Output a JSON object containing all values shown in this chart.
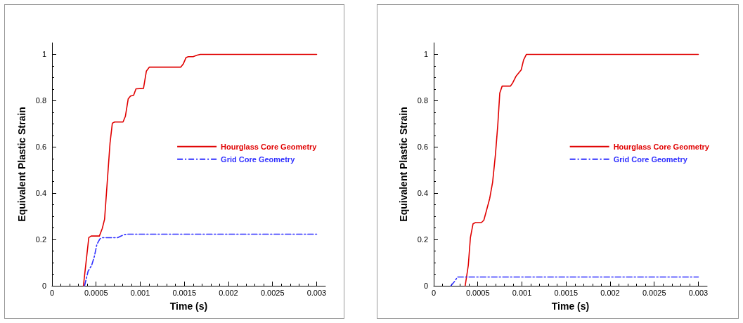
{
  "chart_data": [
    {
      "type": "line",
      "xlabel": "Time (s)",
      "ylabel": "Equivalent Plastic Strain",
      "xlim": [
        0,
        0.0031
      ],
      "ylim": [
        0,
        1.05
      ],
      "xticks": [
        0,
        0.0005,
        0.001,
        0.0015,
        0.002,
        0.0025,
        0.003
      ],
      "yticks": [
        0,
        0.2,
        0.4,
        0.6,
        0.8,
        1
      ],
      "grid": false,
      "legend": "right",
      "marker": "none",
      "series": [
        {
          "name": "Hourglass Core Geometry",
          "color": "#e00000",
          "line_style": "solid",
          "x": [
            0.000356,
            0.000417,
            0.000444,
            0.000537,
            0.00057,
            0.000596,
            0.000658,
            0.000684,
            0.00071,
            0.000805,
            0.000832,
            0.000864,
            0.00089,
            0.000925,
            0.000952,
            0.001037,
            0.00107,
            0.001104,
            0.00146,
            0.001487,
            0.001519,
            0.001545,
            0.0016,
            0.00164,
            0.00168,
            0.003
          ],
          "values": [
            0,
            0.208,
            0.215,
            0.215,
            0.248,
            0.288,
            0.618,
            0.703,
            0.708,
            0.708,
            0.733,
            0.808,
            0.82,
            0.823,
            0.851,
            0.853,
            0.928,
            0.945,
            0.945,
            0.958,
            0.986,
            0.99,
            0.99,
            0.996,
            1,
            1
          ]
        },
        {
          "name": "Grid Core Geometry",
          "color": "#3030ff",
          "line_style": "dashed",
          "x": [
            0.000369,
            0.000409,
            0.000449,
            0.000481,
            0.000508,
            0.000543,
            0.00057,
            0.000743,
            0.00081,
            0.00085,
            0.003
          ],
          "values": [
            0,
            0.063,
            0.088,
            0.128,
            0.178,
            0.203,
            0.208,
            0.208,
            0.22,
            0.223,
            0.223
          ]
        }
      ]
    },
    {
      "type": "line",
      "xlabel": "Time (s)",
      "ylabel": "Equivalent Plastic Strain",
      "xlim": [
        0,
        0.0031
      ],
      "ylim": [
        0,
        1.05
      ],
      "xticks": [
        0,
        0.0005,
        0.001,
        0.0015,
        0.002,
        0.0025,
        0.003
      ],
      "yticks": [
        0,
        0.2,
        0.4,
        0.6,
        0.8,
        1
      ],
      "grid": false,
      "legend": "right",
      "marker": "none",
      "series": [
        {
          "name": "Hourglass Core Geometry",
          "color": "#e00000",
          "line_style": "solid",
          "x": [
            0.000357,
            0.000392,
            0.000416,
            0.000446,
            0.000473,
            0.00054,
            0.000568,
            0.0006,
            0.000635,
            0.000668,
            0.0007,
            0.000727,
            0.000749,
            0.000776,
            0.00087,
            0.000897,
            0.000932,
            0.000992,
            0.001019,
            0.001051,
            0.003
          ],
          "values": [
            0,
            0.088,
            0.208,
            0.268,
            0.273,
            0.273,
            0.283,
            0.328,
            0.378,
            0.448,
            0.568,
            0.698,
            0.833,
            0.863,
            0.863,
            0.878,
            0.905,
            0.933,
            0.976,
            1,
            1
          ]
        },
        {
          "name": "Grid Core Geometry",
          "color": "#3030ff",
          "line_style": "dashed",
          "x": [
            0.000195,
            0.000235,
            0.00027,
            0.003
          ],
          "values": [
            0,
            0.018,
            0.038,
            0.038
          ]
        }
      ]
    }
  ]
}
